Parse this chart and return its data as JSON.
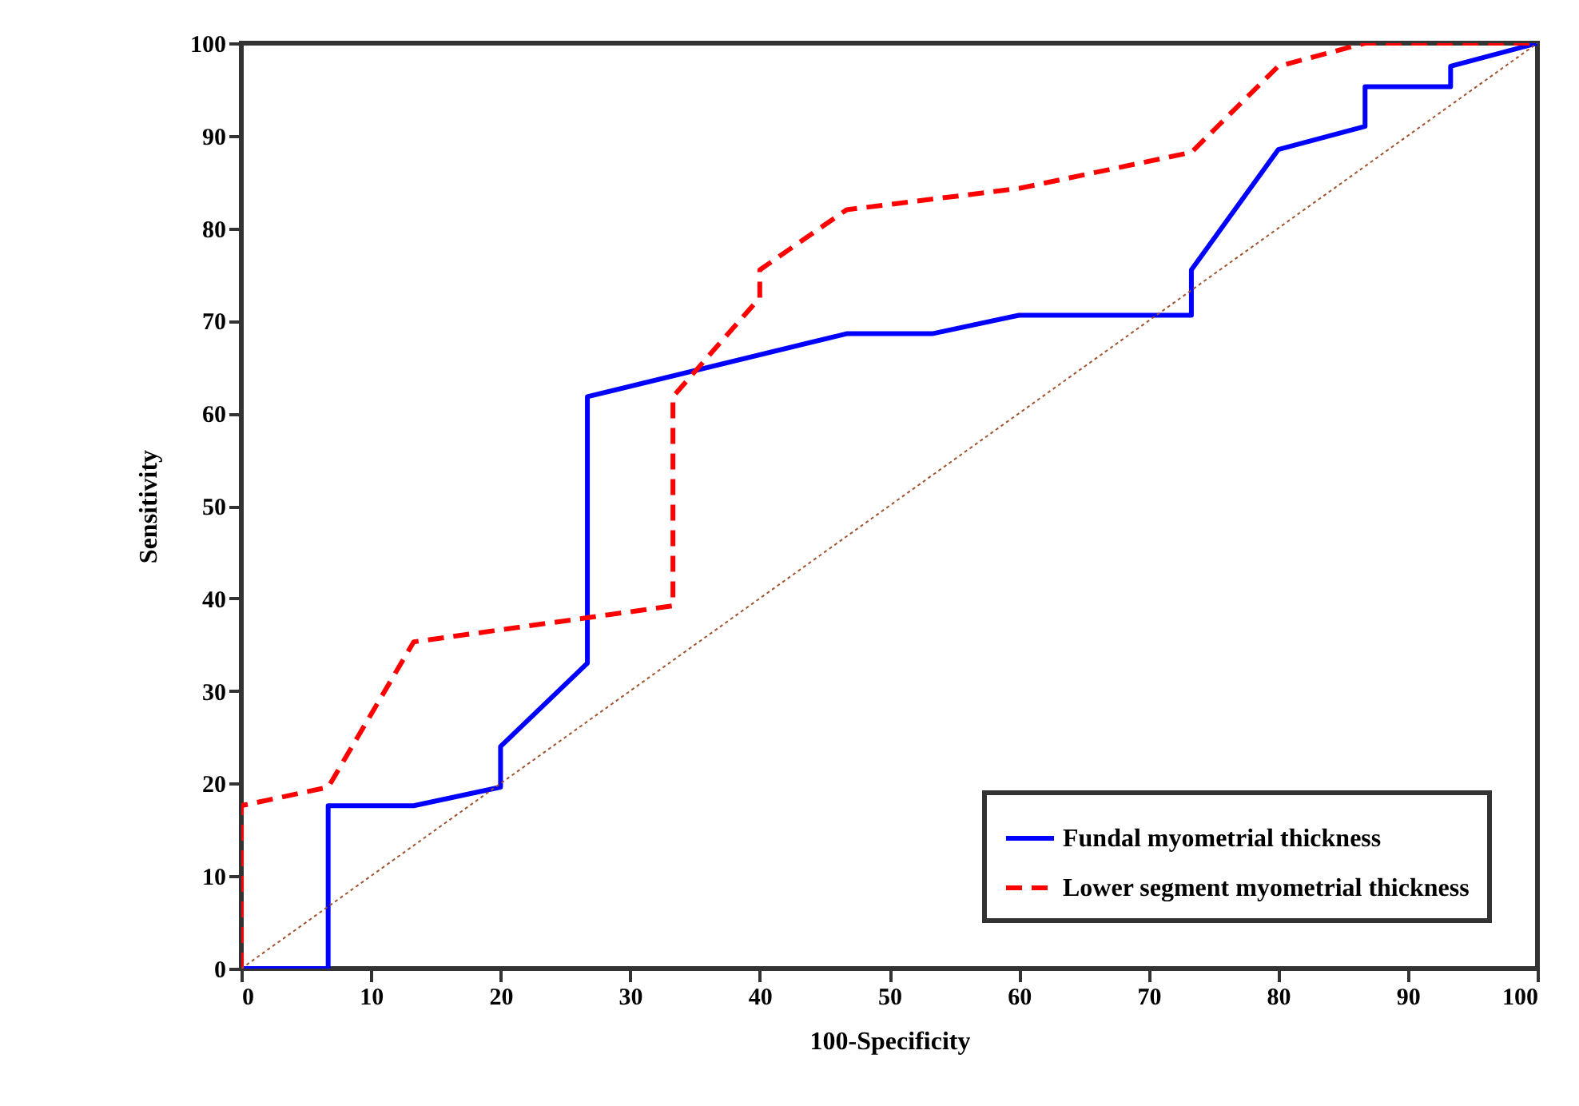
{
  "chart_data": {
    "type": "line",
    "xlabel": "100-Specificity",
    "ylabel": "Sensitivity",
    "xlim": [
      0,
      100
    ],
    "ylim": [
      0,
      100
    ],
    "xticks": [
      0,
      10,
      20,
      30,
      40,
      50,
      60,
      70,
      80,
      90,
      100
    ],
    "yticks": [
      0,
      10,
      20,
      30,
      40,
      50,
      60,
      70,
      80,
      90,
      100
    ],
    "grid": false,
    "legend": "bottom right",
    "marker": "none",
    "series": [
      {
        "name": "Fundal myometrial thickness",
        "color": "#0000ff",
        "line_style": "solid",
        "x": [
          0,
          6.7,
          6.7,
          13.3,
          20,
          20,
          26.7,
          26.7,
          46.7,
          53.3,
          60,
          73.3,
          73.3,
          80,
          86.7,
          86.7,
          93.3,
          93.3,
          100
        ],
        "values": [
          0,
          0,
          17.6,
          17.6,
          19.6,
          24,
          33,
          61.8,
          68.6,
          68.6,
          70.6,
          70.6,
          75.5,
          88.5,
          91,
          95.3,
          95.3,
          97.5,
          100
        ]
      },
      {
        "name": "Lower segment myometrial thickness",
        "color": "#ff0000",
        "line_style": "dashed",
        "x": [
          0,
          0,
          6.7,
          13.3,
          33.3,
          33.3,
          40,
          40,
          46.7,
          60,
          73.3,
          80,
          86.7,
          100
        ],
        "values": [
          0,
          17.6,
          19.6,
          35.3,
          39.2,
          61.8,
          72.5,
          75.5,
          82,
          84.3,
          88.2,
          97.5,
          100,
          100
        ]
      },
      {
        "color": "#a0522d",
        "line_style": "dotted",
        "x": [
          0,
          100
        ],
        "values": [
          0,
          100
        ]
      }
    ]
  }
}
